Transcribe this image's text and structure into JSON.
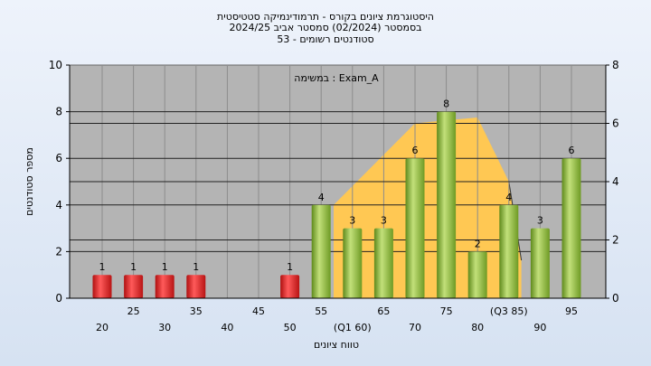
{
  "chart_data": {
    "type": "bar",
    "title": "היסטוגרמת ציונים בקורס - תרמודינמיקה סטטיסטית",
    "subtitle": "בסמסטר  (02/2024)  סמסטר אביב 2024/25",
    "subtitle2": "סטודנטים רשומים - 53",
    "annotation": "במשימה : Exam_A",
    "xlabel": "טווח ציונים",
    "ylabel": "מספר סטודנטים",
    "ylim": [
      0,
      10
    ],
    "yticks": [
      0,
      2,
      4,
      6,
      8,
      10
    ],
    "y2lim": [
      0,
      8
    ],
    "y2ticks": [
      0,
      2,
      4,
      6,
      8
    ],
    "grid": true,
    "categories": [
      "20",
      "25",
      "30",
      "35",
      "40",
      "45",
      "50",
      "55",
      "60",
      "65",
      "70",
      "75",
      "80",
      "85",
      "90",
      "95"
    ],
    "tick_labels": [
      "20",
      "25",
      "30",
      "35",
      "40",
      "45",
      "50",
      "55",
      "(Q1 60)",
      "65",
      "70",
      "75",
      "80",
      "(Q3 85)",
      "90",
      "95"
    ],
    "values": [
      1,
      1,
      1,
      1,
      0,
      0,
      1,
      4,
      3,
      3,
      6,
      8,
      2,
      4,
      3,
      6
    ],
    "fail_below": 55,
    "colors": {
      "fail": "#e02020",
      "pass": "#8ab83a",
      "area": "#ffc853",
      "plot_bg": "#b4b4b4"
    },
    "distribution": {
      "x": [
        57,
        70,
        80,
        85,
        87
      ],
      "y": [
        3.2,
        6,
        6.2,
        4,
        1.3
      ]
    }
  }
}
